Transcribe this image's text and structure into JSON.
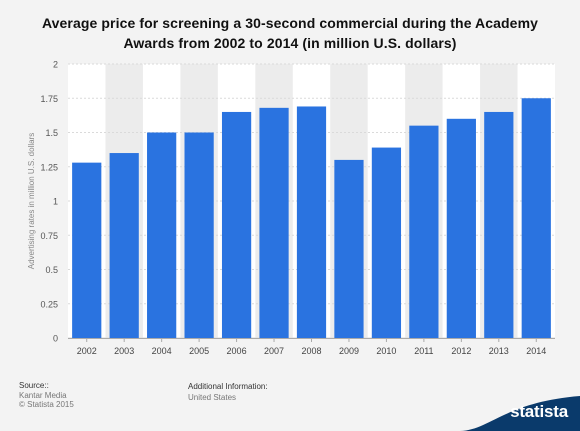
{
  "title": "Average price for screening a 30-second commercial during the Academy Awards from 2002 to 2014 (in million U.S. dollars)",
  "chart_data": {
    "type": "bar",
    "title": "Average price for screening a 30-second commercial during the Academy Awards from 2002 to 2014 (in million U.S. dollars)",
    "xlabel": "",
    "ylabel": "Advertising rates in million U.S. dollars",
    "categories": [
      "2002",
      "2003",
      "2004",
      "2005",
      "2006",
      "2007",
      "2008",
      "2009",
      "2010",
      "2011",
      "2012",
      "2013",
      "2014"
    ],
    "values": [
      1.28,
      1.35,
      1.5,
      1.5,
      1.65,
      1.68,
      1.69,
      1.3,
      1.39,
      1.55,
      1.6,
      1.65,
      1.75
    ],
    "ylim": [
      0,
      2
    ],
    "yticks": [
      "0",
      "0.25",
      "0.5",
      "0.75",
      "1",
      "1.25",
      "1.5",
      "1.75",
      "2"
    ],
    "grid": true,
    "colors": {
      "bar": "#2a73e0",
      "band": "#ececec",
      "plot_bg": "#ffffff"
    }
  },
  "footer": {
    "source_label": "Source::",
    "source_lines": [
      "Kantar Media",
      "© Statista 2015"
    ],
    "additional_label": "Additional Information:",
    "additional_value": "United States"
  },
  "brand": {
    "name": "statista",
    "color": "#0a3a6b"
  }
}
